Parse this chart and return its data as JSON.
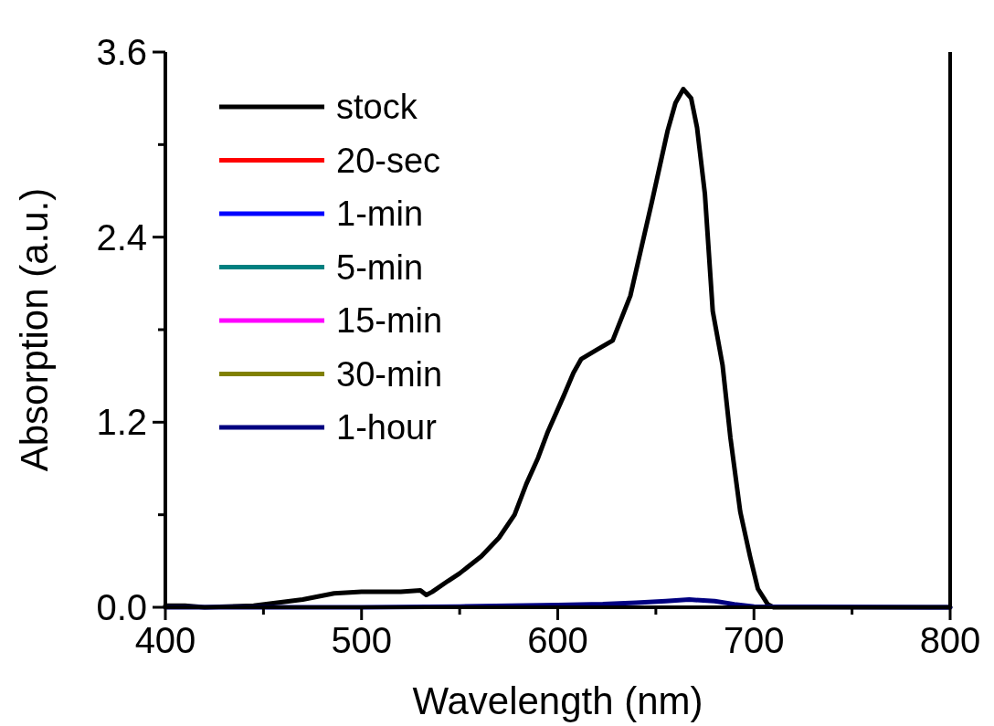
{
  "chart_data": {
    "type": "line",
    "xlabel": "Wavelength (nm)",
    "ylabel": "Absorption (a.u.)",
    "xlim": [
      400,
      800
    ],
    "ylim": [
      0,
      3.6
    ],
    "xticks": [
      400,
      {
        "value": 450,
        "label": null
      },
      500,
      {
        "value": 550,
        "label": null
      },
      600,
      {
        "value": 650,
        "label": null
      },
      700,
      {
        "value": 750,
        "label": null
      },
      800
    ],
    "yticks": [
      {
        "value": 0,
        "label": "0.0"
      },
      {
        "value": 0.6,
        "label": null
      },
      {
        "value": 1.2,
        "label": "1.2"
      },
      {
        "value": 1.8,
        "label": null
      },
      {
        "value": 2.4,
        "label": "2.4"
      },
      {
        "value": 3.0,
        "label": null
      },
      {
        "value": 3.6,
        "label": "3.6"
      }
    ],
    "grid": false,
    "legend": "top left",
    "line_style": "solid",
    "marker": "none",
    "series": [
      {
        "name": "stock",
        "color": "#000000",
        "x": [
          400,
          410,
          420,
          445,
          470,
          486,
          500,
          520,
          530,
          533,
          536,
          544,
          550,
          561,
          570,
          578,
          584,
          590,
          595,
          603,
          608,
          612,
          620,
          628,
          637,
          648,
          656,
          660,
          664,
          668,
          671,
          675,
          679,
          684,
          688,
          693,
          698,
          702,
          707,
          710,
          750,
          800
        ],
        "values": [
          0.01,
          0.01,
          0,
          0.01,
          0.05,
          0.09,
          0.1,
          0.1,
          0.11,
          0.08,
          0.1,
          0.17,
          0.22,
          0.33,
          0.45,
          0.6,
          0.8,
          0.97,
          1.14,
          1.37,
          1.52,
          1.61,
          1.67,
          1.73,
          2.02,
          2.63,
          3.09,
          3.27,
          3.36,
          3.3,
          3.11,
          2.68,
          1.92,
          1.57,
          1.1,
          0.62,
          0.33,
          0.12,
          0.02,
          0,
          0,
          0
        ]
      },
      {
        "name": "20-sec",
        "color": "#ff0000"
      },
      {
        "name": "1-min",
        "color": "#0000ff"
      },
      {
        "name": "5-min",
        "color": "#008080"
      },
      {
        "name": "15-min",
        "color": "#ff00ff"
      },
      {
        "name": "30-min",
        "color": "#808000"
      },
      {
        "name": "1-hour",
        "color": "#000080",
        "x": [
          400,
          500,
          550,
          600,
          623,
          640,
          655,
          667,
          680,
          690,
          700,
          800
        ],
        "values": [
          0,
          0,
          0.005,
          0.015,
          0.02,
          0.03,
          0.04,
          0.05,
          0.04,
          0.02,
          0.005,
          0
        ]
      }
    ]
  }
}
